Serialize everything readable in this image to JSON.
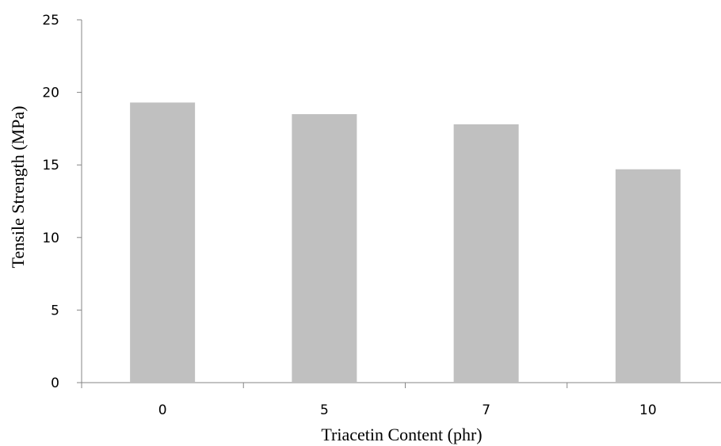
{
  "chart_data": {
    "type": "bar",
    "title": "",
    "xlabel": "Triacetin Content (phr)",
    "ylabel": "Tensile Strength (MPa)",
    "categories": [
      "0",
      "5",
      "7",
      "10"
    ],
    "values": [
      19.3,
      18.5,
      17.8,
      14.7
    ],
    "ylim": [
      0,
      25
    ],
    "yticks": [
      "0",
      "5",
      "10",
      "15",
      "20",
      "25"
    ],
    "grid": false,
    "legend": "none",
    "bar_color": "#c0c0c0",
    "axis_color": "#868686"
  }
}
